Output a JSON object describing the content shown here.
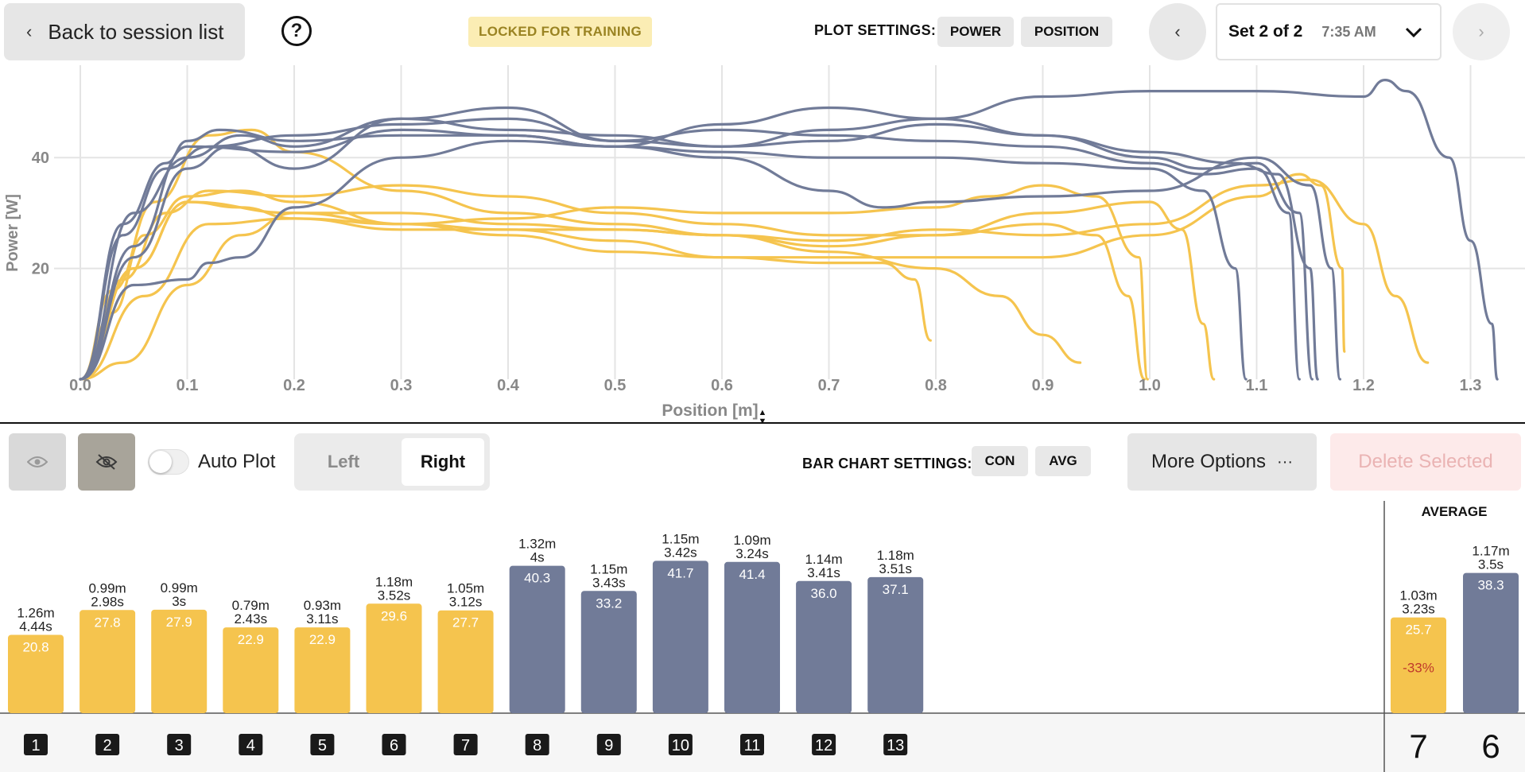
{
  "header": {
    "back_label": "Back to session list",
    "locked_badge": "LOCKED FOR TRAINING",
    "plot_settings_label": "PLOT SETTINGS:",
    "plot_buttons": [
      "POWER",
      "POSITION"
    ],
    "set_title": "Set 2 of 2",
    "set_time": "7:35 AM"
  },
  "colors": {
    "left": "#f5c44e",
    "right": "#717b98",
    "accent_badge": "#fbedb4"
  },
  "icons": [
    "help-icon",
    "chevron-left-icon",
    "chevron-right-icon",
    "chevron-down-icon",
    "eye-icon",
    "eye-off-icon",
    "ellipsis-icon"
  ],
  "toolbar": {
    "autoplot_label": "Auto Plot",
    "autoplot_on": false,
    "side_options": [
      "Left",
      "Right"
    ],
    "selected_side": "Right",
    "bar_settings_label": "BAR CHART SETTINGS:",
    "bar_buttons": [
      "CON",
      "AVG"
    ],
    "more_label": "More Options",
    "delete_label": "Delete Selected"
  },
  "chart_data": [
    {
      "type": "line",
      "xlabel": "Position [m]",
      "ylabel": "Power [W]",
      "xlim": [
        0,
        1.35
      ],
      "ylim": [
        0,
        56
      ],
      "xticks": [
        "0.0",
        "0.1",
        "0.2",
        "0.3",
        "0.4",
        "0.5",
        "0.6",
        "0.7",
        "0.8",
        "0.9",
        "1.0",
        "1.1",
        "1.2",
        "1.3"
      ],
      "yticks": [
        "20",
        "40"
      ],
      "grid": true,
      "series": [
        {
          "group": "left",
          "points": [
            [
              0,
              0
            ],
            [
              0.03,
              12
            ],
            [
              0.06,
              26
            ],
            [
              0.1,
              33
            ],
            [
              0.15,
              34
            ],
            [
              0.2,
              32
            ],
            [
              0.3,
              28
            ],
            [
              0.4,
              27
            ],
            [
              0.5,
              25
            ],
            [
              0.6,
              22
            ],
            [
              0.7,
              21
            ],
            [
              0.75,
              21
            ],
            [
              0.78,
              18
            ],
            [
              0.795,
              7
            ]
          ]
        },
        {
          "group": "left",
          "points": [
            [
              0,
              0
            ],
            [
              0.03,
              16
            ],
            [
              0.07,
              32
            ],
            [
              0.12,
              44
            ],
            [
              0.16,
              45
            ],
            [
              0.2,
              41
            ],
            [
              0.3,
              34
            ],
            [
              0.4,
              30
            ],
            [
              0.5,
              28
            ],
            [
              0.6,
              26
            ],
            [
              0.7,
              23
            ],
            [
              0.8,
              20
            ],
            [
              0.86,
              15
            ],
            [
              0.9,
              8
            ],
            [
              0.935,
              3
            ]
          ]
        },
        {
          "group": "left",
          "points": [
            [
              0,
              0
            ],
            [
              0.04,
              18
            ],
            [
              0.08,
              30
            ],
            [
              0.12,
              34
            ],
            [
              0.2,
              33
            ],
            [
              0.3,
              35
            ],
            [
              0.4,
              33
            ],
            [
              0.5,
              30
            ],
            [
              0.6,
              28
            ],
            [
              0.7,
              26
            ],
            [
              0.8,
              26
            ],
            [
              0.9,
              28
            ],
            [
              0.95,
              26
            ],
            [
              0.98,
              15
            ],
            [
              0.995,
              0
            ]
          ]
        },
        {
          "group": "left",
          "points": [
            [
              0,
              0
            ],
            [
              0.05,
              20
            ],
            [
              0.1,
              32
            ],
            [
              0.15,
              31
            ],
            [
              0.2,
              29
            ],
            [
              0.3,
              28
            ],
            [
              0.4,
              29
            ],
            [
              0.5,
              31
            ],
            [
              0.6,
              30
            ],
            [
              0.7,
              30
            ],
            [
              0.8,
              31
            ],
            [
              0.85,
              33
            ],
            [
              0.9,
              35
            ],
            [
              0.95,
              33
            ],
            [
              0.99,
              22
            ],
            [
              0.998,
              0
            ]
          ]
        },
        {
          "group": "left",
          "points": [
            [
              0,
              0
            ],
            [
              0.05,
              20
            ],
            [
              0.1,
              32
            ],
            [
              0.2,
              30
            ],
            [
              0.3,
              30
            ],
            [
              0.4,
              28
            ],
            [
              0.5,
              27
            ],
            [
              0.6,
              26
            ],
            [
              0.7,
              24
            ],
            [
              0.8,
              26
            ],
            [
              0.9,
              30
            ],
            [
              1.0,
              32
            ],
            [
              1.03,
              27
            ],
            [
              1.05,
              10
            ],
            [
              1.06,
              0
            ]
          ]
        },
        {
          "group": "left",
          "points": [
            [
              0,
              0
            ],
            [
              0.06,
              15
            ],
            [
              0.12,
              28
            ],
            [
              0.2,
              29
            ],
            [
              0.3,
              27
            ],
            [
              0.4,
              27
            ],
            [
              0.5,
              27
            ],
            [
              0.6,
              26
            ],
            [
              0.7,
              25
            ],
            [
              0.8,
              27
            ],
            [
              0.9,
              26
            ],
            [
              1.0,
              28
            ],
            [
              1.1,
              35
            ],
            [
              1.15,
              36
            ],
            [
              1.2,
              28
            ],
            [
              1.23,
              15
            ],
            [
              1.26,
              3
            ]
          ]
        },
        {
          "group": "left",
          "points": [
            [
              0,
              0
            ],
            [
              0.04,
              3
            ],
            [
              0.1,
              17
            ],
            [
              0.15,
              26
            ],
            [
              0.2,
              30
            ],
            [
              0.3,
              28
            ],
            [
              0.4,
              26
            ],
            [
              0.5,
              23
            ],
            [
              0.6,
              22
            ],
            [
              0.7,
              22
            ],
            [
              0.8,
              22
            ],
            [
              0.9,
              22
            ],
            [
              1.0,
              26
            ],
            [
              1.1,
              33
            ],
            [
              1.14,
              37
            ],
            [
              1.16,
              35
            ],
            [
              1.18,
              20
            ],
            [
              1.182,
              5
            ]
          ]
        },
        {
          "group": "right",
          "points": [
            [
              0,
              0
            ],
            [
              0.04,
              28
            ],
            [
              0.08,
              39
            ],
            [
              0.1,
              43
            ],
            [
              0.13,
              45
            ],
            [
              0.2,
              43
            ],
            [
              0.3,
              44
            ],
            [
              0.4,
              44
            ],
            [
              0.5,
              42
            ],
            [
              0.6,
              41
            ],
            [
              0.7,
              40
            ],
            [
              0.8,
              40
            ],
            [
              0.9,
              39
            ],
            [
              1.0,
              38
            ],
            [
              1.05,
              34
            ],
            [
              1.08,
              20
            ],
            [
              1.09,
              0
            ]
          ]
        },
        {
          "group": "right",
          "points": [
            [
              0,
              0
            ],
            [
              0.04,
              26
            ],
            [
              0.08,
              38
            ],
            [
              0.12,
              42
            ],
            [
              0.2,
              44
            ],
            [
              0.3,
              46
            ],
            [
              0.4,
              47
            ],
            [
              0.5,
              43
            ],
            [
              0.6,
              45
            ],
            [
              0.7,
              44
            ],
            [
              0.8,
              43
            ],
            [
              0.9,
              42
            ],
            [
              1.0,
              39
            ],
            [
              1.05,
              37
            ],
            [
              1.1,
              38
            ],
            [
              1.13,
              30
            ],
            [
              1.14,
              0
            ]
          ]
        },
        {
          "group": "right",
          "points": [
            [
              0,
              0
            ],
            [
              0.05,
              30
            ],
            [
              0.1,
              40
            ],
            [
              0.15,
              44
            ],
            [
              0.2,
              42
            ],
            [
              0.3,
              47
            ],
            [
              0.4,
              45
            ],
            [
              0.5,
              44
            ],
            [
              0.6,
              42
            ],
            [
              0.7,
              45
            ],
            [
              0.8,
              47
            ],
            [
              0.9,
              44
            ],
            [
              1.0,
              40
            ],
            [
              1.05,
              38
            ],
            [
              1.1,
              39
            ],
            [
              1.14,
              30
            ],
            [
              1.152,
              0
            ]
          ]
        },
        {
          "group": "right",
          "points": [
            [
              0,
              0
            ],
            [
              0.05,
              22
            ],
            [
              0.1,
              38
            ],
            [
              0.14,
              42
            ],
            [
              0.2,
              38
            ],
            [
              0.3,
              47
            ],
            [
              0.4,
              49
            ],
            [
              0.5,
              43
            ],
            [
              0.6,
              42
            ],
            [
              0.7,
              43
            ],
            [
              0.8,
              46
            ],
            [
              0.9,
              44
            ],
            [
              1.0,
              41
            ],
            [
              1.08,
              39
            ],
            [
              1.12,
              37
            ],
            [
              1.15,
              20
            ],
            [
              1.157,
              0
            ]
          ]
        },
        {
          "group": "right",
          "points": [
            [
              0,
              0
            ],
            [
              0.05,
              17
            ],
            [
              0.1,
              18
            ],
            [
              0.12,
              21
            ],
            [
              0.15,
              22
            ],
            [
              0.2,
              31
            ],
            [
              0.3,
              40
            ],
            [
              0.4,
              43
            ],
            [
              0.5,
              42
            ],
            [
              0.6,
              40
            ],
            [
              0.7,
              34
            ],
            [
              0.75,
              31
            ],
            [
              0.8,
              32
            ],
            [
              0.9,
              33
            ],
            [
              1.0,
              34
            ],
            [
              1.1,
              40
            ],
            [
              1.15,
              35
            ],
            [
              1.17,
              20
            ],
            [
              1.178,
              0
            ]
          ]
        },
        {
          "group": "right",
          "points": [
            [
              0,
              0
            ],
            [
              0.05,
              24
            ],
            [
              0.1,
              42
            ],
            [
              0.2,
              41
            ],
            [
              0.3,
              45
            ],
            [
              0.4,
              44
            ],
            [
              0.5,
              42
            ],
            [
              0.6,
              46
            ],
            [
              0.7,
              49
            ],
            [
              0.8,
              47
            ],
            [
              0.9,
              51
            ],
            [
              1.0,
              52
            ],
            [
              1.1,
              52
            ],
            [
              1.2,
              51
            ],
            [
              1.22,
              54
            ],
            [
              1.24,
              52
            ],
            [
              1.28,
              40
            ],
            [
              1.3,
              25
            ],
            [
              1.32,
              10
            ],
            [
              1.325,
              0
            ]
          ]
        }
      ]
    },
    {
      "type": "bar",
      "categories": [
        "1",
        "2",
        "3",
        "4",
        "5",
        "6",
        "7",
        "8",
        "9",
        "10",
        "11",
        "12",
        "13"
      ],
      "values": [
        20.8,
        27.8,
        27.9,
        22.9,
        22.9,
        29.6,
        27.7,
        40.3,
        33.2,
        41.7,
        41.4,
        36.0,
        37.1
      ],
      "value_labels": [
        "20.8",
        "27.8",
        "27.9",
        "22.9",
        "22.9",
        "29.6",
        "27.7",
        "40.3",
        "33.2",
        "41.7",
        "41.4",
        "36.0",
        "37.1"
      ],
      "groups": [
        "left",
        "left",
        "left",
        "left",
        "left",
        "left",
        "left",
        "right",
        "right",
        "right",
        "right",
        "right",
        "right"
      ],
      "distances": [
        "1.26m",
        "0.99m",
        "0.99m",
        "0.79m",
        "0.93m",
        "1.18m",
        "1.05m",
        "1.32m",
        "1.15m",
        "1.15m",
        "1.09m",
        "1.14m",
        "1.18m"
      ],
      "durations": [
        "4.44s",
        "2.98s",
        "3s",
        "2.43s",
        "3.11s",
        "3.52s",
        "3.12s",
        "4s",
        "3.43s",
        "3.42s",
        "3.24s",
        "3.41s",
        "3.51s"
      ],
      "average": {
        "title": "AVERAGE",
        "left": {
          "value": 25.7,
          "value_label": "25.7",
          "distance": "1.03m",
          "duration": "3.23s",
          "diff": "-33%",
          "count": "7"
        },
        "right": {
          "value": 38.3,
          "value_label": "38.3",
          "distance": "1.17m",
          "duration": "3.5s",
          "count": "6"
        }
      }
    }
  ]
}
